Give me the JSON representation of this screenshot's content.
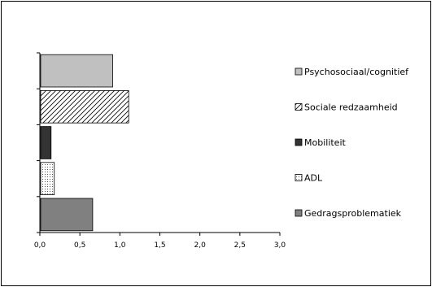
{
  "chart_data": {
    "type": "bar",
    "orientation": "horizontal",
    "categories": [
      "Psychosociaal/cognitief",
      "Sociale redzaamheid",
      "Mobiliteit",
      "ADL",
      "Gedragsproblematiek"
    ],
    "values": [
      0.9,
      1.1,
      0.13,
      0.17,
      0.65
    ],
    "xlim": [
      0,
      3.0
    ],
    "xticks": [
      "0,0",
      "0,5",
      "1,0",
      "1,5",
      "2,0",
      "2,5",
      "3,0"
    ],
    "tick_values": [
      0,
      0.5,
      1.0,
      1.5,
      2.0,
      2.5,
      3.0
    ],
    "grid": false,
    "legend_position": "right",
    "series_styles": [
      {
        "fill": "#c0c0c0",
        "pattern": "solid"
      },
      {
        "fill": "#ffffff",
        "pattern": "diagonal-hatch"
      },
      {
        "fill": "#333333",
        "pattern": "solid"
      },
      {
        "fill": "#ffffff",
        "pattern": "dots"
      },
      {
        "fill": "#808080",
        "pattern": "solid"
      }
    ]
  }
}
